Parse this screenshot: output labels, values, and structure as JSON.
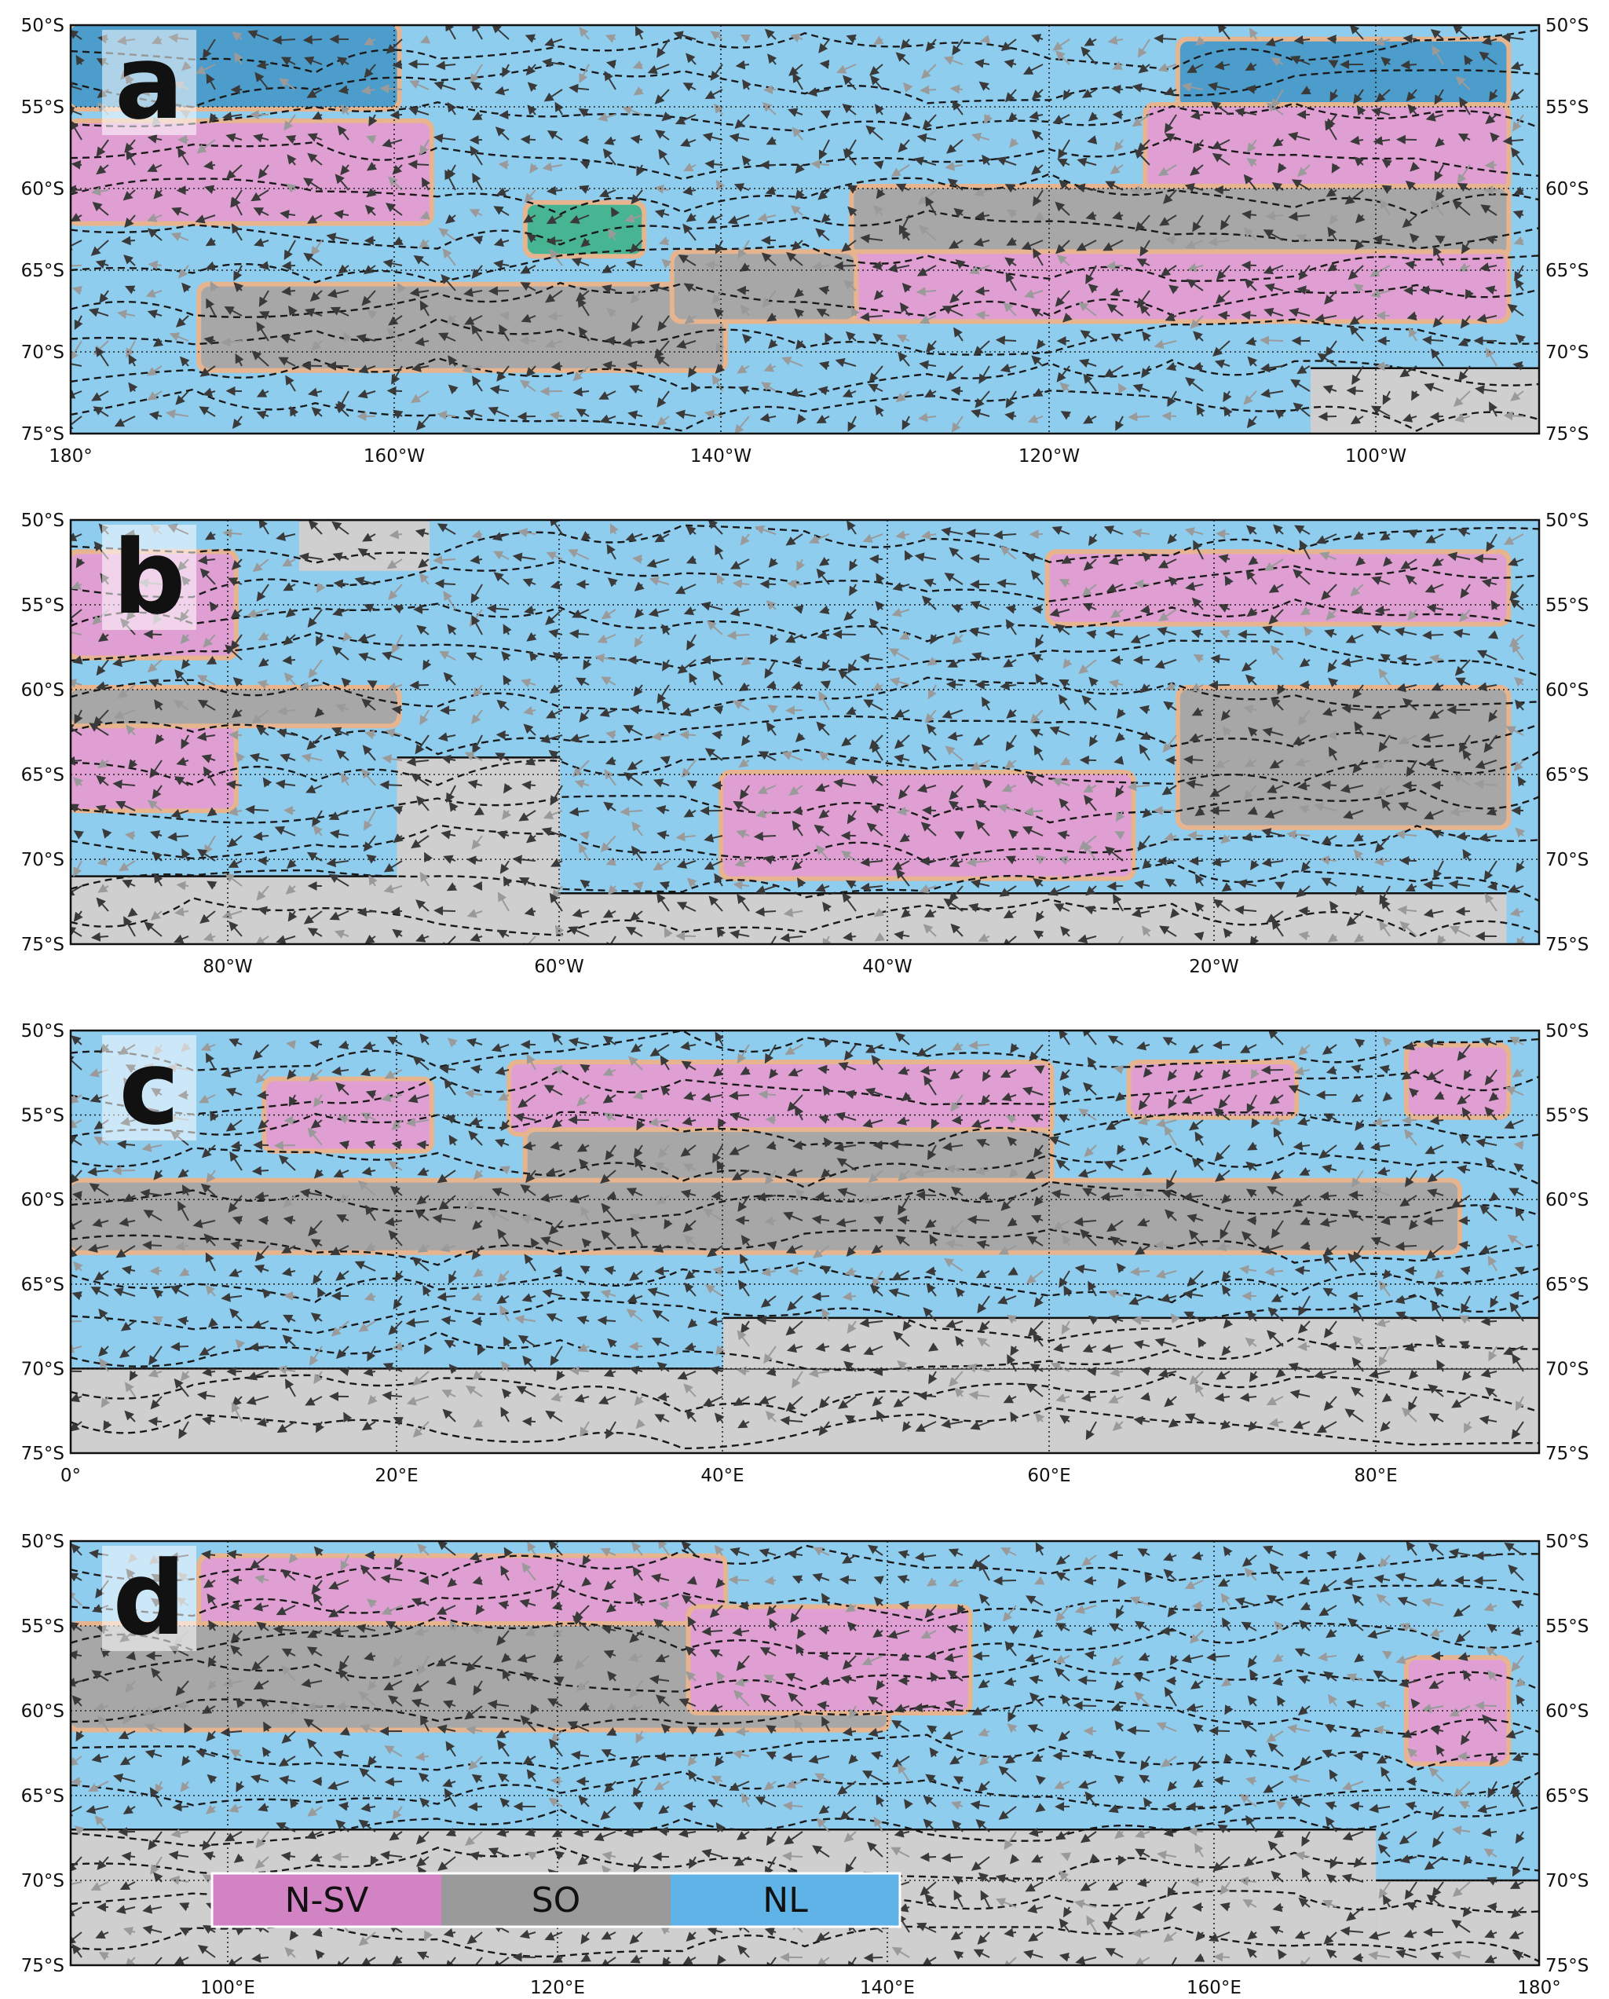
{
  "colors": {
    "N-SV": "#df9fd2",
    "SO": "#a7a7a7",
    "NL": "#8fcdef",
    "transition": "#e6b48e",
    "deep_blue": "#4c9dcc",
    "green": "#48b592",
    "land": "#cfcfcf"
  },
  "lat_labels": [
    "50°S",
    "55°S",
    "60°S",
    "65°S",
    "70°S",
    "75°S"
  ],
  "legend": [
    {
      "key": "N-SV",
      "label": "N-SV",
      "color": "#d283c4"
    },
    {
      "key": "SO",
      "label": "SO",
      "color": "#9a9a9a"
    },
    {
      "key": "NL",
      "label": "NL",
      "color": "#5fb3e7"
    }
  ],
  "panels": [
    {
      "label": "a",
      "lon_labels": [
        "180°",
        "160°W",
        "140°W",
        "120°W",
        "100°W"
      ],
      "bands": [
        {
          "cls": "deep_blue",
          "lat": [
            50,
            55
          ],
          "lon": [
            0,
            20
          ]
        },
        {
          "cls": "N-SV",
          "lat": [
            56,
            62
          ],
          "lon": [
            0,
            22
          ]
        },
        {
          "cls": "deep_blue",
          "lat": [
            51,
            55
          ],
          "lon": [
            68,
            88
          ]
        },
        {
          "cls": "N-SV",
          "lat": [
            55,
            60
          ],
          "lon": [
            66,
            88
          ]
        },
        {
          "cls": "SO",
          "lat": [
            60,
            64
          ],
          "lon": [
            48,
            88
          ]
        },
        {
          "cls": "N-SV",
          "lat": [
            64,
            68
          ],
          "lon": [
            45,
            88
          ]
        },
        {
          "cls": "SO",
          "lat": [
            66,
            71
          ],
          "lon": [
            8,
            40
          ]
        },
        {
          "cls": "SO",
          "lat": [
            64,
            68
          ],
          "lon": [
            37,
            48
          ]
        },
        {
          "cls": "green",
          "lat": [
            61,
            64
          ],
          "lon": [
            28,
            35
          ]
        },
        {
          "cls": "land",
          "lat": [
            71,
            75
          ],
          "lon": [
            76,
            90
          ]
        }
      ]
    },
    {
      "label": "b",
      "lon_labels": [
        "80°W",
        "60°W",
        "40°W",
        "20°W"
      ],
      "bands": [
        {
          "cls": "N-SV",
          "lat": [
            52,
            58
          ],
          "lon": [
            0,
            10
          ]
        },
        {
          "cls": "N-SV",
          "lat": [
            62,
            67
          ],
          "lon": [
            0,
            10
          ]
        },
        {
          "cls": "SO",
          "lat": [
            60,
            62
          ],
          "lon": [
            0,
            20
          ]
        },
        {
          "cls": "N-SV",
          "lat": [
            52,
            56
          ],
          "lon": [
            60,
            88
          ]
        },
        {
          "cls": "SO",
          "lat": [
            60,
            68
          ],
          "lon": [
            68,
            88
          ]
        },
        {
          "cls": "N-SV",
          "lat": [
            65,
            71
          ],
          "lon": [
            40,
            65
          ]
        },
        {
          "cls": "land",
          "lat": [
            64,
            75
          ],
          "lon": [
            20,
            30
          ]
        },
        {
          "cls": "land",
          "lat": [
            71,
            75
          ],
          "lon": [
            0,
            20
          ]
        },
        {
          "cls": "land",
          "lat": [
            72,
            75
          ],
          "lon": [
            30,
            88
          ]
        },
        {
          "cls": "land",
          "lat": [
            50,
            53
          ],
          "lon": [
            14,
            22
          ]
        }
      ]
    },
    {
      "label": "c",
      "lon_labels": [
        "0°",
        "20°E",
        "40°E",
        "60°E",
        "80°E"
      ],
      "bands": [
        {
          "cls": "N-SV",
          "lat": [
            53,
            57
          ],
          "lon": [
            12,
            22
          ]
        },
        {
          "cls": "N-SV",
          "lat": [
            52,
            56
          ],
          "lon": [
            27,
            60
          ]
        },
        {
          "cls": "SO",
          "lat": [
            56,
            59
          ],
          "lon": [
            28,
            60
          ]
        },
        {
          "cls": "SO",
          "lat": [
            59,
            63
          ],
          "lon": [
            0,
            85
          ]
        },
        {
          "cls": "N-SV",
          "lat": [
            52,
            55
          ],
          "lon": [
            65,
            75
          ]
        },
        {
          "cls": "N-SV",
          "lat": [
            51,
            55
          ],
          "lon": [
            82,
            88
          ]
        },
        {
          "cls": "land",
          "lat": [
            70,
            75
          ],
          "lon": [
            0,
            90
          ]
        },
        {
          "cls": "land",
          "lat": [
            67,
            70
          ],
          "lon": [
            40,
            90
          ]
        }
      ]
    },
    {
      "label": "d",
      "lon_labels": [
        "100°E",
        "120°E",
        "140°E",
        "160°E",
        "180°"
      ],
      "bands": [
        {
          "cls": "N-SV",
          "lat": [
            51,
            55
          ],
          "lon": [
            8,
            40
          ]
        },
        {
          "cls": "SO",
          "lat": [
            55,
            61
          ],
          "lon": [
            0,
            50
          ]
        },
        {
          "cls": "N-SV",
          "lat": [
            54,
            60
          ],
          "lon": [
            38,
            55
          ]
        },
        {
          "cls": "N-SV",
          "lat": [
            57,
            63
          ],
          "lon": [
            82,
            88
          ]
        },
        {
          "cls": "land",
          "lat": [
            67,
            75
          ],
          "lon": [
            0,
            80
          ]
        },
        {
          "cls": "land",
          "lat": [
            70,
            75
          ],
          "lon": [
            80,
            90
          ]
        }
      ]
    }
  ]
}
